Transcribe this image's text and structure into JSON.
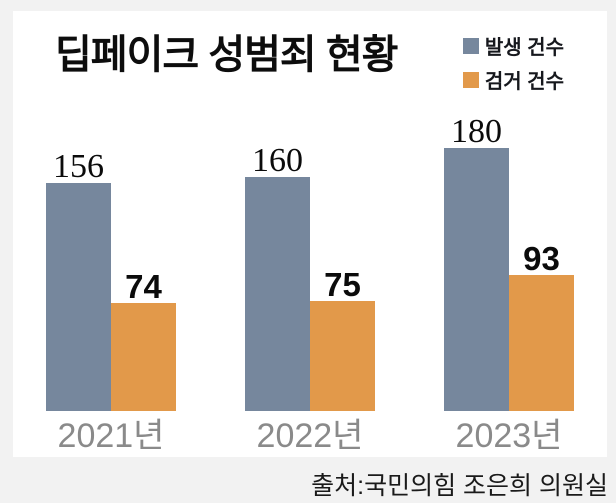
{
  "title": "딥페이크 성범죄 현황",
  "legend": [
    {
      "label": "발생 건수",
      "color": "#76879D"
    },
    {
      "label": "검거 건수",
      "color": "#E2994A"
    }
  ],
  "source": "출처:국민의힘 조은희 의원실",
  "colors": {
    "background": "#f2f2f2",
    "panel": "#ffffff",
    "series_occurrence": "#76879D",
    "series_arrest": "#E2994A",
    "x_label": "#8a8a8a",
    "title_text": "#0d0d0d"
  },
  "chart_data": {
    "type": "bar",
    "title": "딥페이크 성범죄 현황",
    "categories": [
      "2021년",
      "2022년",
      "2023년"
    ],
    "series": [
      {
        "name": "발생 건수",
        "color": "#76879D",
        "values": [
          156,
          160,
          180
        ]
      },
      {
        "name": "검거 건수",
        "color": "#E2994A",
        "values": [
          74,
          75,
          93
        ]
      }
    ],
    "xlabel": "",
    "ylabel": "",
    "ylim": [
      0,
      200
    ],
    "grid": false,
    "legend_position": "top-right",
    "value_labels": true,
    "source": "출처:국민의힘 조은희 의원실"
  }
}
